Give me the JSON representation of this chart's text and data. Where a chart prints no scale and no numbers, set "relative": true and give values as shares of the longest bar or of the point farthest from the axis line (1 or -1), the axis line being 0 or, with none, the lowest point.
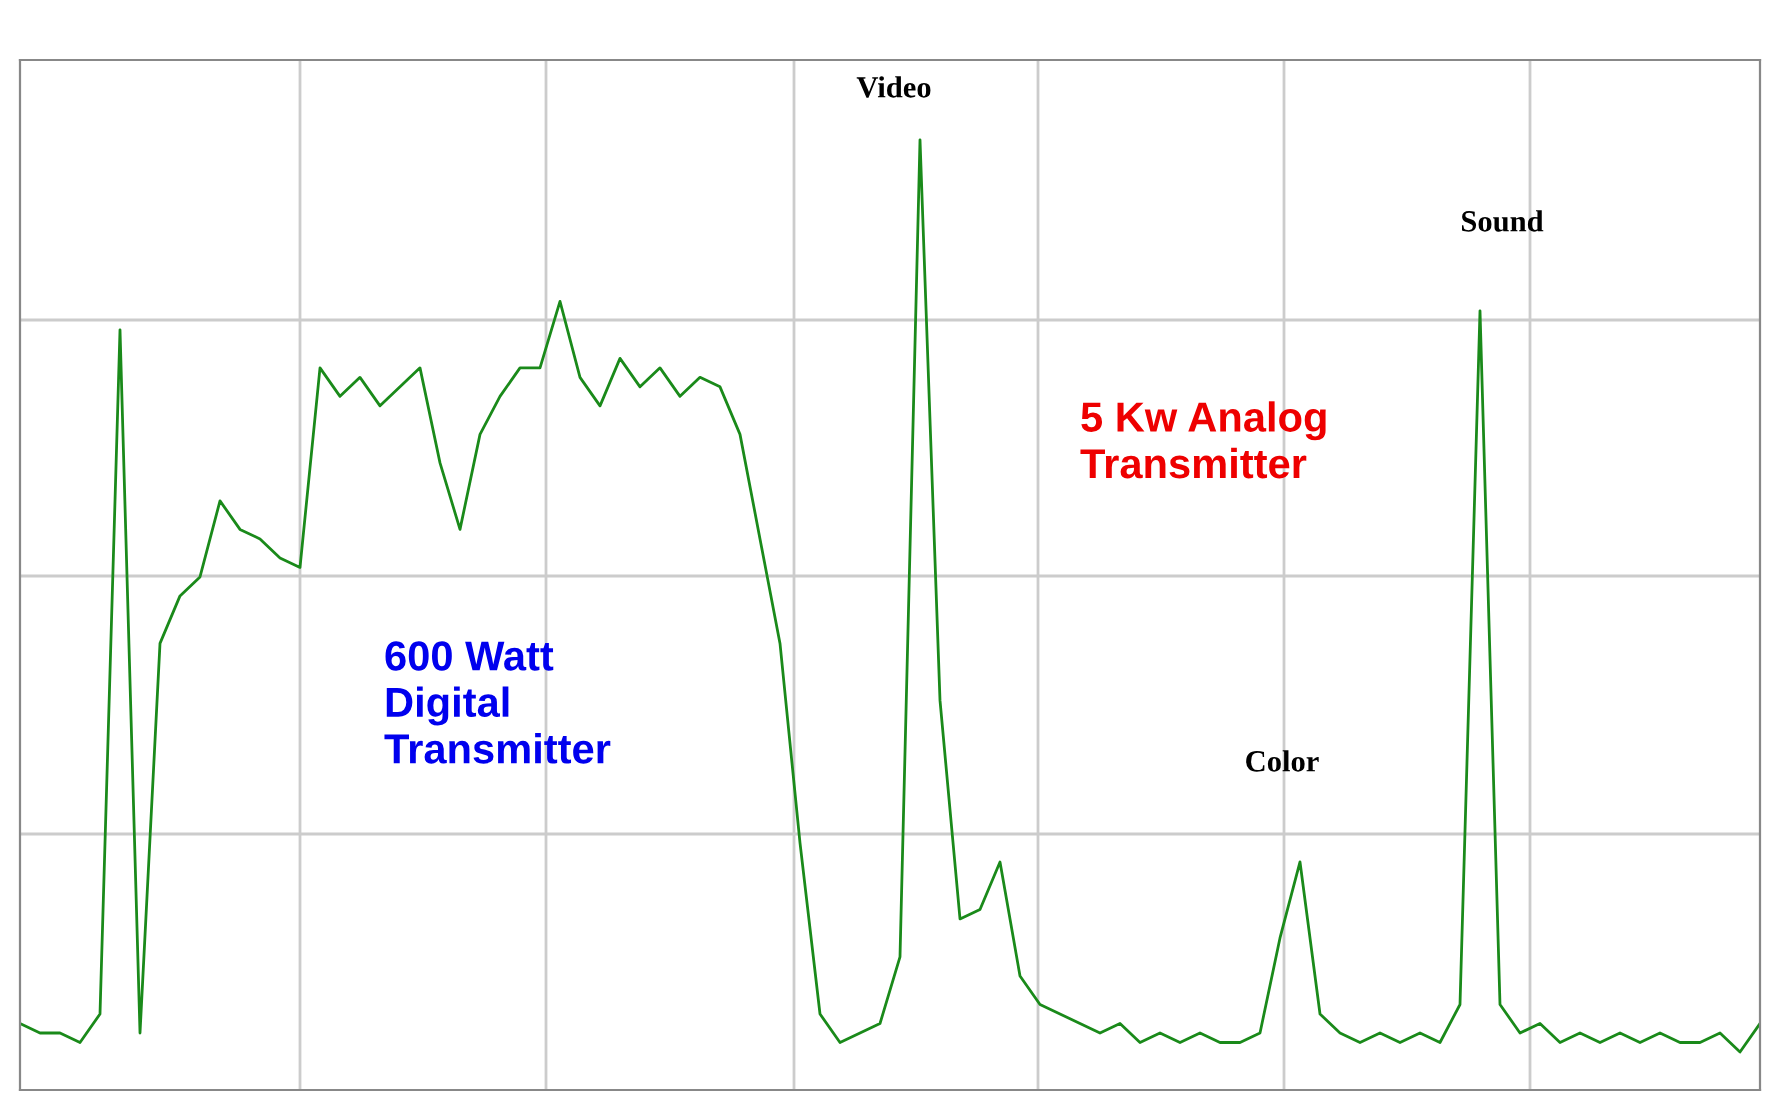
{
  "chart_data": {
    "type": "line",
    "relative": true,
    "grid": true,
    "marker": "none",
    "line_style": "solid",
    "tick_labels": false,
    "categories": [
      null,
      null,
      null,
      null,
      null,
      null,
      null,
      null,
      null,
      null,
      null,
      null,
      null,
      null,
      null,
      null,
      null,
      null,
      null,
      null,
      null,
      null,
      null,
      null,
      null,
      null,
      null,
      null,
      null,
      null,
      null,
      null,
      null,
      null,
      null,
      null,
      null,
      null,
      null,
      null,
      null,
      null,
      null,
      null,
      null,
      null,
      null,
      null,
      null,
      null,
      null,
      null,
      null,
      null,
      null,
      null,
      null,
      null,
      null,
      null,
      null,
      null,
      null,
      null,
      null,
      null,
      null,
      null,
      null,
      null,
      null,
      null,
      null,
      null,
      null,
      null,
      null,
      null,
      null,
      null,
      null,
      null,
      null,
      null,
      null,
      null,
      null,
      null
    ],
    "series": [
      {
        "color": "#1a8a1a",
        "values": [
          0.07,
          0.06,
          0.06,
          0.05,
          0.08,
          0.8,
          0.06,
          0.47,
          0.52,
          0.54,
          0.62,
          0.59,
          0.58,
          0.56,
          0.55,
          0.76,
          0.73,
          0.75,
          0.72,
          0.74,
          0.76,
          0.66,
          0.59,
          0.69,
          0.73,
          0.76,
          0.76,
          0.83,
          0.75,
          0.72,
          0.77,
          0.74,
          0.76,
          0.73,
          0.75,
          0.74,
          0.69,
          0.58,
          0.47,
          0.26,
          0.08,
          0.05,
          0.06,
          0.07,
          0.14,
          1,
          0.41,
          0.18,
          0.19,
          0.24,
          0.12,
          0.09,
          0.08,
          0.07,
          0.06,
          0.07,
          0.05,
          0.06,
          0.05,
          0.06,
          0.05,
          0.05,
          0.06,
          0.16,
          0.24,
          0.08,
          0.06,
          0.05,
          0.06,
          0.05,
          0.06,
          0.05,
          0.09,
          0.82,
          0.09,
          0.06,
          0.07,
          0.05,
          0.06,
          0.05,
          0.06,
          0.05,
          0.06,
          0.05,
          0.05,
          0.06,
          0.04,
          0.07
        ]
      }
    ],
    "annotations": [
      "Video",
      "Sound",
      "Color",
      "600 Watt\nDigital\nTransmitter",
      "5 Kw Analog\nTransmitter"
    ]
  }
}
